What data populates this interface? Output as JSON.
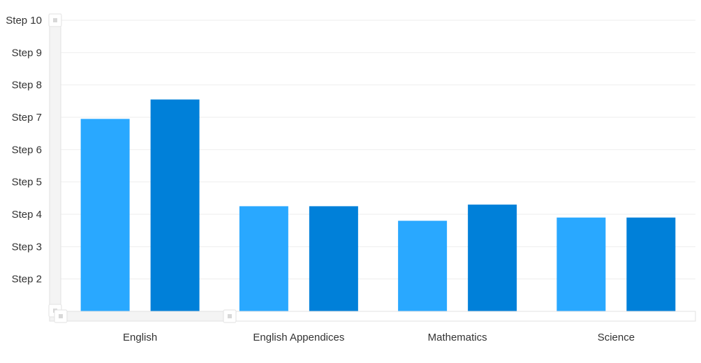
{
  "chart_data": {
    "type": "bar",
    "title": "",
    "xlabel": "",
    "ylabel": "",
    "categories": [
      "English",
      "English Appendices",
      "Mathematics",
      "Science"
    ],
    "y_tick_labels": [
      "Step 2",
      "Step 3",
      "Step 4",
      "Step 5",
      "Step 6",
      "Step 7",
      "Step 8",
      "Step 9",
      "Step 10"
    ],
    "y_tick_values": [
      2,
      3,
      4,
      5,
      6,
      7,
      8,
      9,
      10
    ],
    "ylim": [
      1,
      10
    ],
    "grid": true,
    "legend": "none",
    "series": [
      {
        "values": [
          6.95,
          4.25,
          3.8,
          3.9
        ],
        "color": "#29A8FF"
      },
      {
        "values": [
          7.55,
          4.25,
          4.3,
          3.9
        ],
        "color": "#0080D9"
      }
    ]
  }
}
